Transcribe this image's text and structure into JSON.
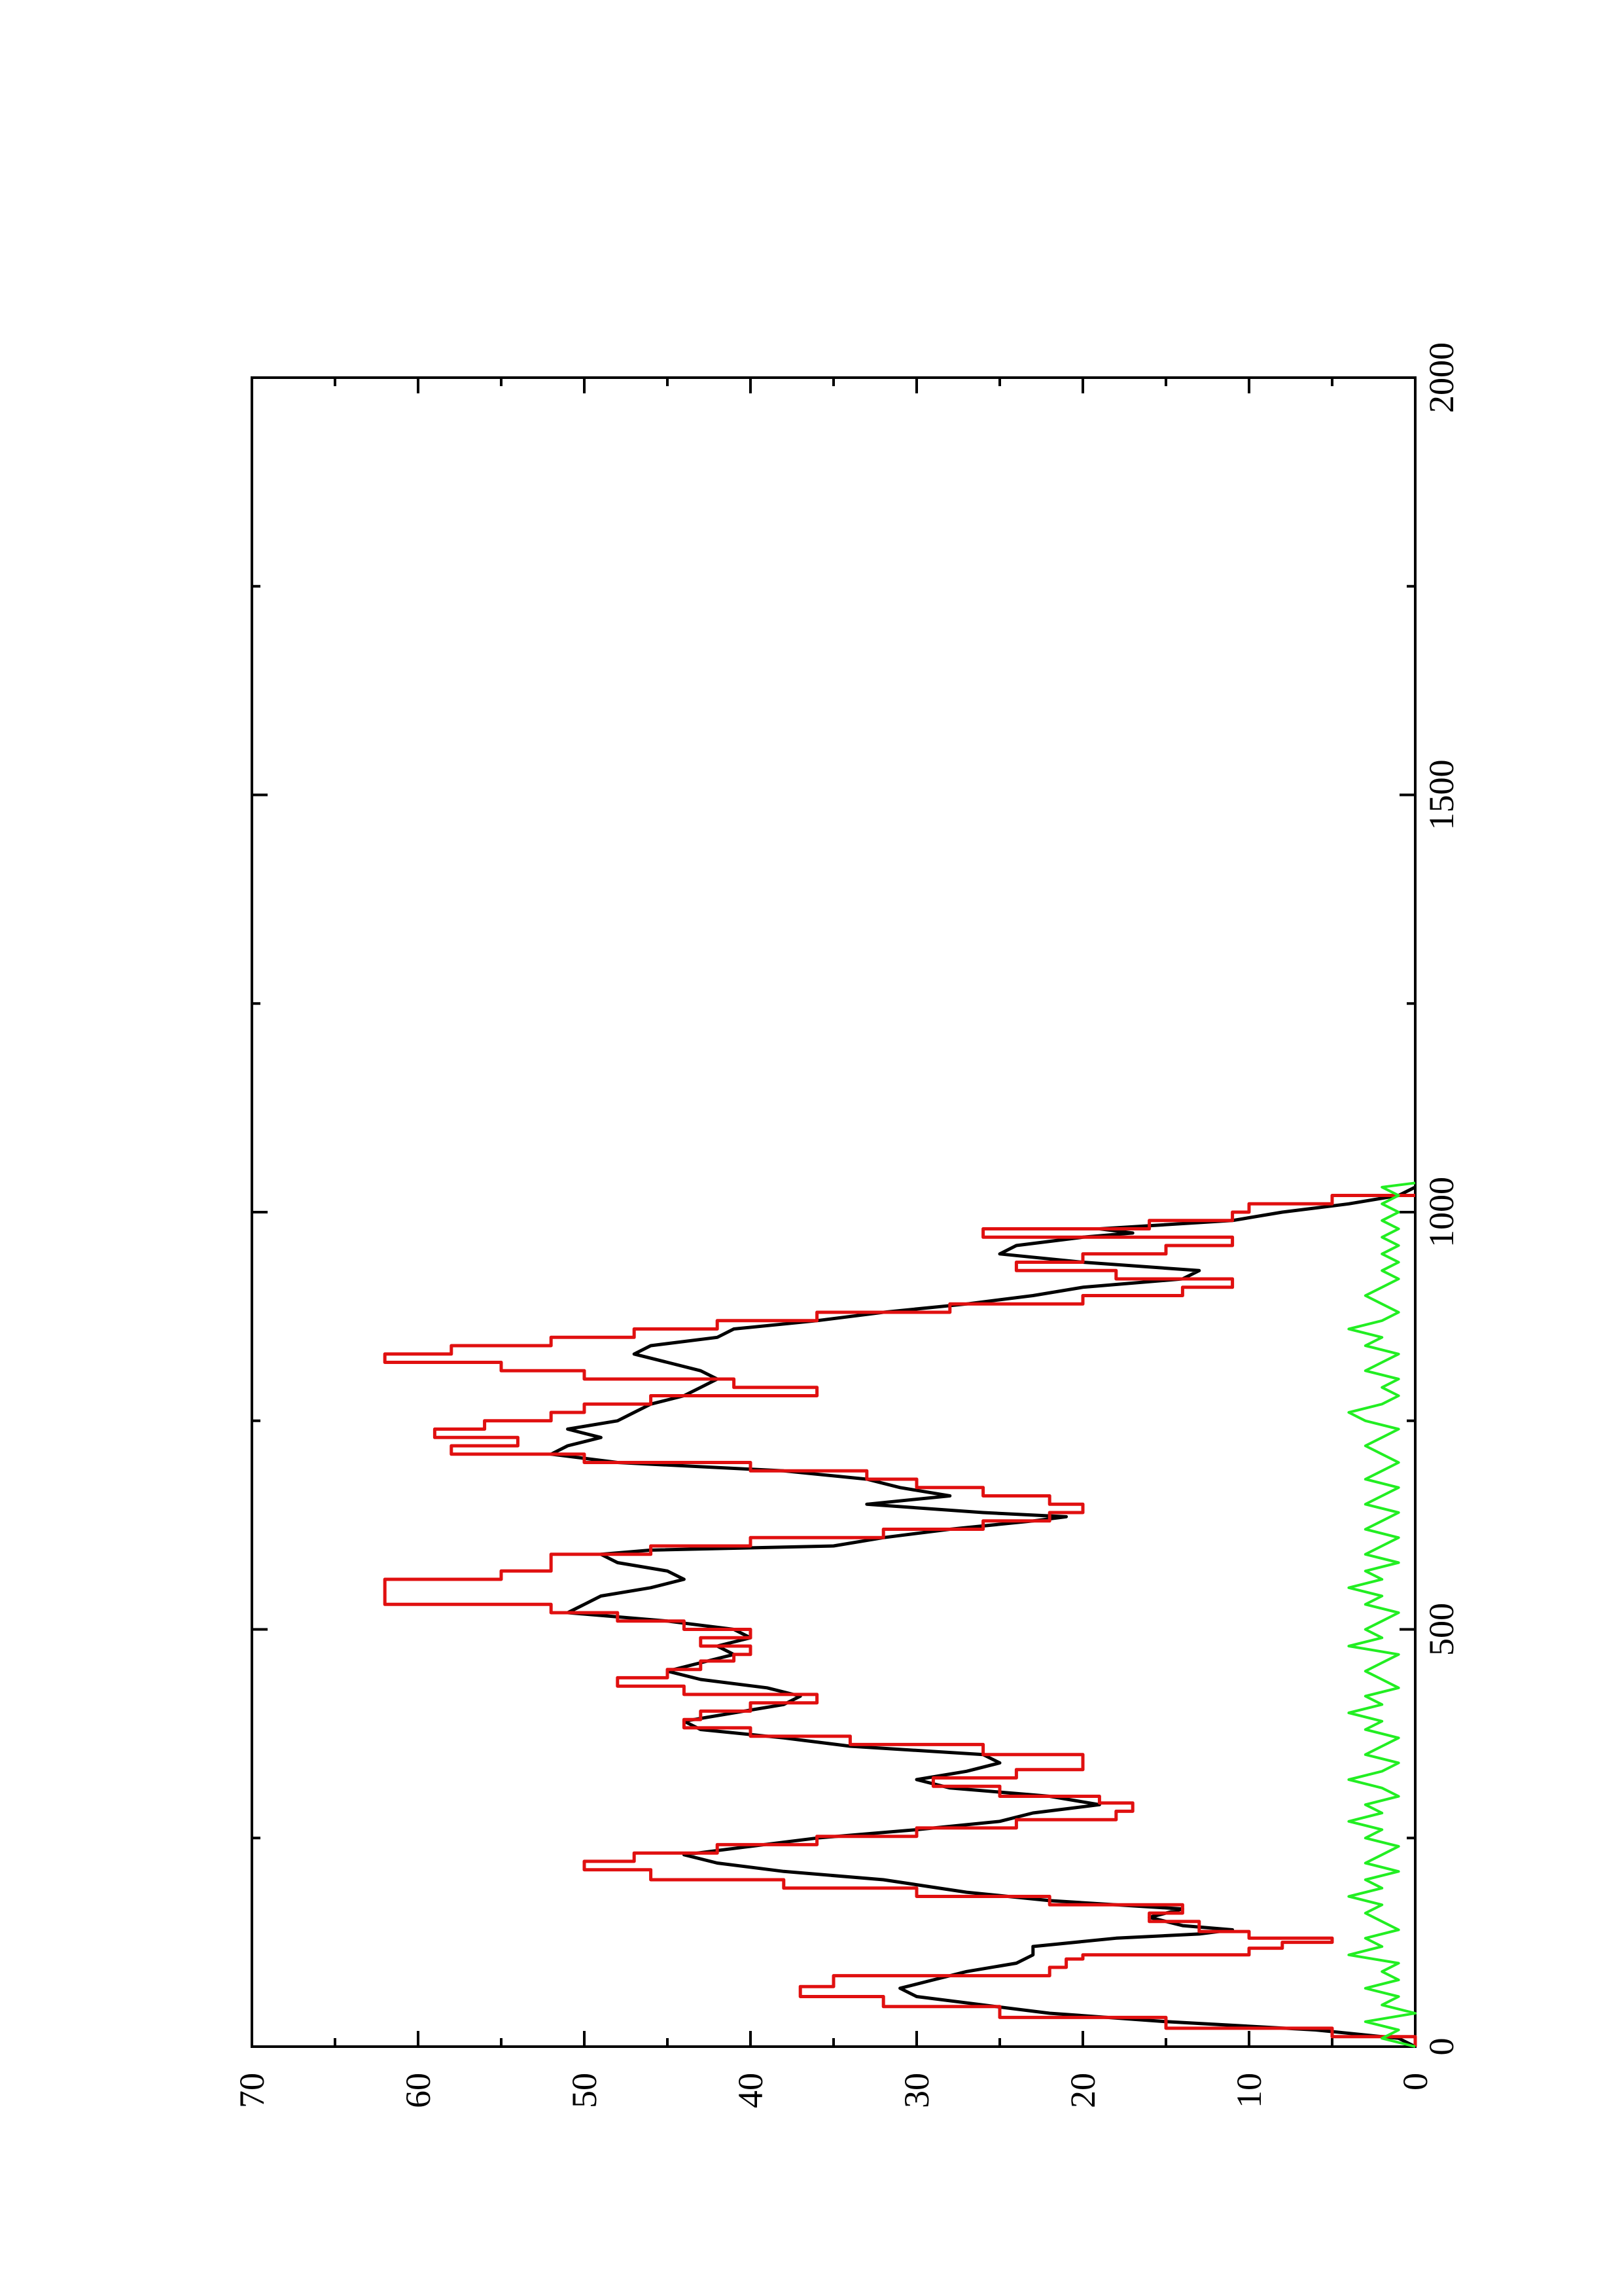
{
  "chart_data": {
    "type": "line",
    "orientation": "rotated-90-counterclockwise",
    "xlim": [
      0,
      2000
    ],
    "ylim": [
      0,
      70
    ],
    "x_ticks": [
      0,
      500,
      1000,
      1500,
      2000
    ],
    "x_minor_step": 250,
    "y_ticks": [
      0,
      10,
      20,
      30,
      40,
      50,
      60,
      70
    ],
    "y_minor_step": 5,
    "grid": false,
    "x_tick_labels": [
      "0",
      "500",
      "1000",
      "1500",
      "2000"
    ],
    "y_tick_labels": [
      "0",
      "10",
      "20",
      "30",
      "40",
      "50",
      "60",
      "70"
    ],
    "series": [
      {
        "color": "#000000",
        "style": "continuous",
        "points": [
          [
            0,
            0
          ],
          [
            10,
            1
          ],
          [
            20,
            6
          ],
          [
            30,
            15
          ],
          [
            40,
            22
          ],
          [
            50,
            26
          ],
          [
            60,
            30
          ],
          [
            70,
            31
          ],
          [
            80,
            29
          ],
          [
            90,
            27
          ],
          [
            100,
            24
          ],
          [
            110,
            23
          ],
          [
            120,
            23
          ],
          [
            130,
            18
          ],
          [
            135,
            13
          ],
          [
            140,
            11
          ],
          [
            145,
            14
          ],
          [
            155,
            16
          ],
          [
            165,
            14
          ],
          [
            175,
            22
          ],
          [
            185,
            27
          ],
          [
            200,
            32
          ],
          [
            210,
            38
          ],
          [
            220,
            42
          ],
          [
            230,
            44
          ],
          [
            240,
            40
          ],
          [
            250,
            36
          ],
          [
            260,
            30
          ],
          [
            270,
            25
          ],
          [
            280,
            23
          ],
          [
            290,
            19
          ],
          [
            300,
            22
          ],
          [
            310,
            28
          ],
          [
            320,
            30
          ],
          [
            330,
            27
          ],
          [
            340,
            25
          ],
          [
            350,
            26
          ],
          [
            360,
            34
          ],
          [
            370,
            38
          ],
          [
            380,
            43
          ],
          [
            390,
            44
          ],
          [
            400,
            41
          ],
          [
            410,
            38
          ],
          [
            420,
            37
          ],
          [
            430,
            39
          ],
          [
            440,
            43
          ],
          [
            450,
            45
          ],
          [
            460,
            43
          ],
          [
            470,
            41
          ],
          [
            480,
            42
          ],
          [
            490,
            40
          ],
          [
            500,
            41
          ],
          [
            510,
            45
          ],
          [
            520,
            51
          ],
          [
            530,
            50
          ],
          [
            540,
            49
          ],
          [
            550,
            46
          ],
          [
            560,
            44
          ],
          [
            570,
            45
          ],
          [
            580,
            48
          ],
          [
            590,
            49
          ],
          [
            595,
            46
          ],
          [
            600,
            35
          ],
          [
            610,
            32
          ],
          [
            620,
            28
          ],
          [
            630,
            23
          ],
          [
            635,
            21
          ],
          [
            640,
            26
          ],
          [
            650,
            33
          ],
          [
            660,
            28
          ],
          [
            670,
            31
          ],
          [
            680,
            33
          ],
          [
            690,
            38
          ],
          [
            700,
            48
          ],
          [
            710,
            52
          ],
          [
            720,
            51
          ],
          [
            730,
            49
          ],
          [
            740,
            51
          ],
          [
            750,
            48
          ],
          [
            760,
            47
          ],
          [
            770,
            46
          ],
          [
            780,
            44
          ],
          [
            790,
            43
          ],
          [
            800,
            42
          ],
          [
            810,
            43
          ],
          [
            820,
            45
          ],
          [
            830,
            47
          ],
          [
            840,
            46
          ],
          [
            850,
            42
          ],
          [
            860,
            41
          ],
          [
            870,
            36
          ],
          [
            880,
            32
          ],
          [
            890,
            27
          ],
          [
            900,
            23
          ],
          [
            910,
            20
          ],
          [
            920,
            14
          ],
          [
            930,
            13
          ],
          [
            940,
            20
          ],
          [
            950,
            25
          ],
          [
            960,
            24
          ],
          [
            970,
            20
          ],
          [
            975,
            17
          ],
          [
            980,
            19
          ],
          [
            990,
            11
          ],
          [
            1000,
            8
          ],
          [
            1010,
            4
          ],
          [
            1020,
            1
          ],
          [
            1030,
            0
          ]
        ]
      },
      {
        "color": "#e01010",
        "style": "stepped",
        "points": [
          [
            0,
            0
          ],
          [
            12,
            5
          ],
          [
            22,
            15
          ],
          [
            35,
            25
          ],
          [
            48,
            32
          ],
          [
            60,
            37
          ],
          [
            72,
            35
          ],
          [
            85,
            22
          ],
          [
            95,
            21
          ],
          [
            105,
            20
          ],
          [
            110,
            10
          ],
          [
            118,
            8
          ],
          [
            125,
            5
          ],
          [
            130,
            10
          ],
          [
            138,
            13
          ],
          [
            150,
            16
          ],
          [
            160,
            14
          ],
          [
            170,
            22
          ],
          [
            180,
            30
          ],
          [
            190,
            38
          ],
          [
            200,
            46
          ],
          [
            212,
            50
          ],
          [
            222,
            47
          ],
          [
            232,
            42
          ],
          [
            242,
            36
          ],
          [
            252,
            30
          ],
          [
            262,
            24
          ],
          [
            272,
            18
          ],
          [
            282,
            17
          ],
          [
            292,
            19
          ],
          [
            300,
            25
          ],
          [
            312,
            29
          ],
          [
            322,
            24
          ],
          [
            332,
            20
          ],
          [
            342,
            20
          ],
          [
            350,
            26
          ],
          [
            362,
            34
          ],
          [
            372,
            40
          ],
          [
            382,
            44
          ],
          [
            392,
            43
          ],
          [
            402,
            40
          ],
          [
            412,
            36
          ],
          [
            422,
            44
          ],
          [
            432,
            48
          ],
          [
            442,
            45
          ],
          [
            452,
            43
          ],
          [
            462,
            41
          ],
          [
            470,
            40
          ],
          [
            480,
            43
          ],
          [
            490,
            40
          ],
          [
            500,
            44
          ],
          [
            510,
            48
          ],
          [
            520,
            52
          ],
          [
            530,
            62
          ],
          [
            550,
            62
          ],
          [
            560,
            55
          ],
          [
            570,
            52
          ],
          [
            580,
            52
          ],
          [
            590,
            46
          ],
          [
            600,
            40
          ],
          [
            610,
            32
          ],
          [
            620,
            26
          ],
          [
            630,
            22
          ],
          [
            640,
            20
          ],
          [
            650,
            22
          ],
          [
            660,
            26
          ],
          [
            670,
            30
          ],
          [
            680,
            33
          ],
          [
            690,
            40
          ],
          [
            700,
            50
          ],
          [
            710,
            58
          ],
          [
            720,
            54
          ],
          [
            730,
            59
          ],
          [
            740,
            56
          ],
          [
            750,
            52
          ],
          [
            760,
            50
          ],
          [
            770,
            46
          ],
          [
            780,
            36
          ],
          [
            790,
            41
          ],
          [
            800,
            50
          ],
          [
            810,
            55
          ],
          [
            820,
            62
          ],
          [
            830,
            58
          ],
          [
            840,
            52
          ],
          [
            850,
            47
          ],
          [
            860,
            42
          ],
          [
            870,
            36
          ],
          [
            880,
            28
          ],
          [
            890,
            20
          ],
          [
            900,
            14
          ],
          [
            910,
            11
          ],
          [
            920,
            18
          ],
          [
            930,
            24
          ],
          [
            940,
            20
          ],
          [
            950,
            15
          ],
          [
            960,
            11
          ],
          [
            970,
            26
          ],
          [
            980,
            16
          ],
          [
            990,
            11
          ],
          [
            1000,
            10
          ],
          [
            1010,
            5
          ],
          [
            1020,
            0
          ]
        ]
      },
      {
        "color": "#22ee22",
        "style": "noise",
        "points": [
          [
            0,
            0
          ],
          [
            10,
            2
          ],
          [
            20,
            1
          ],
          [
            30,
            3
          ],
          [
            40,
            0
          ],
          [
            50,
            2
          ],
          [
            60,
            1
          ],
          [
            70,
            3
          ],
          [
            80,
            1
          ],
          [
            90,
            2
          ],
          [
            100,
            1
          ],
          [
            110,
            4
          ],
          [
            120,
            2
          ],
          [
            130,
            3
          ],
          [
            140,
            1
          ],
          [
            150,
            2
          ],
          [
            160,
            3
          ],
          [
            170,
            2
          ],
          [
            180,
            4
          ],
          [
            190,
            2
          ],
          [
            200,
            3
          ],
          [
            210,
            1
          ],
          [
            220,
            3
          ],
          [
            230,
            2
          ],
          [
            240,
            1
          ],
          [
            250,
            3
          ],
          [
            260,
            2
          ],
          [
            270,
            4
          ],
          [
            280,
            2
          ],
          [
            290,
            3
          ],
          [
            300,
            1
          ],
          [
            310,
            2
          ],
          [
            320,
            4
          ],
          [
            330,
            2
          ],
          [
            340,
            1
          ],
          [
            350,
            3
          ],
          [
            360,
            2
          ],
          [
            370,
            1
          ],
          [
            380,
            3
          ],
          [
            390,
            2
          ],
          [
            400,
            4
          ],
          [
            410,
            2
          ],
          [
            420,
            3
          ],
          [
            430,
            1
          ],
          [
            440,
            2
          ],
          [
            450,
            3
          ],
          [
            460,
            2
          ],
          [
            470,
            1
          ],
          [
            480,
            4
          ],
          [
            490,
            2
          ],
          [
            500,
            3
          ],
          [
            510,
            2
          ],
          [
            520,
            1
          ],
          [
            530,
            3
          ],
          [
            540,
            2
          ],
          [
            550,
            4
          ],
          [
            560,
            2
          ],
          [
            570,
            3
          ],
          [
            580,
            1
          ],
          [
            590,
            3
          ],
          [
            600,
            2
          ],
          [
            610,
            1
          ],
          [
            620,
            3
          ],
          [
            630,
            2
          ],
          [
            640,
            1
          ],
          [
            650,
            3
          ],
          [
            660,
            2
          ],
          [
            670,
            1
          ],
          [
            680,
            3
          ],
          [
            690,
            2
          ],
          [
            700,
            1
          ],
          [
            710,
            2
          ],
          [
            720,
            3
          ],
          [
            730,
            2
          ],
          [
            740,
            1
          ],
          [
            750,
            3
          ],
          [
            760,
            4
          ],
          [
            770,
            2
          ],
          [
            780,
            1
          ],
          [
            790,
            2
          ],
          [
            800,
            1
          ],
          [
            810,
            3
          ],
          [
            820,
            2
          ],
          [
            830,
            1
          ],
          [
            840,
            3
          ],
          [
            850,
            2
          ],
          [
            860,
            4
          ],
          [
            870,
            2
          ],
          [
            880,
            1
          ],
          [
            890,
            2
          ],
          [
            900,
            3
          ],
          [
            910,
            2
          ],
          [
            920,
            1
          ],
          [
            930,
            2
          ],
          [
            940,
            1
          ],
          [
            950,
            2
          ],
          [
            960,
            1
          ],
          [
            970,
            2
          ],
          [
            980,
            1
          ],
          [
            990,
            2
          ],
          [
            1000,
            1
          ],
          [
            1010,
            2
          ],
          [
            1020,
            1
          ],
          [
            1030,
            2
          ],
          [
            1035,
            0
          ]
        ]
      }
    ]
  }
}
